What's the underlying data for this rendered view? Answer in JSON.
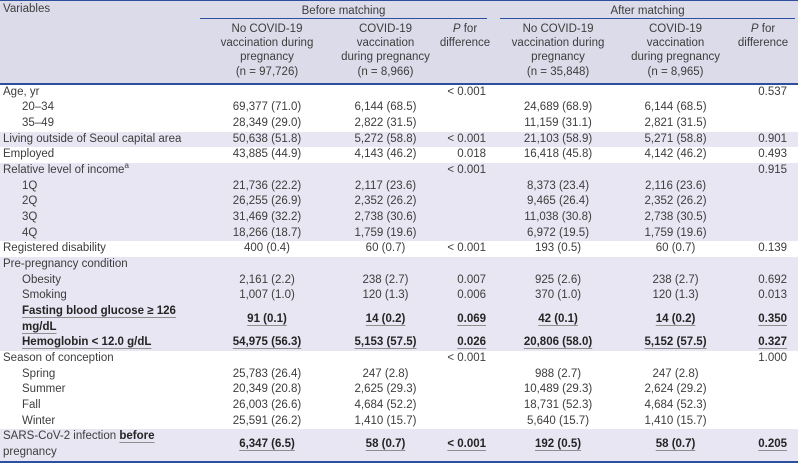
{
  "colors": {
    "accent_line_blue": "#2e4f9e",
    "header_band_bg": "#dcdbea",
    "stripe_row_bg": "#e7e6f2",
    "body_text": "#3d3d3d"
  },
  "header": {
    "variables": "Variables",
    "before_matching": "Before matching",
    "after_matching": "After matching",
    "cols": {
      "no_vacc_before": "No COVID-19\nvaccination during\npregnancy\n(n = 97,726)",
      "vacc_before": "COVID-19 vaccination\nduring pregnancy\n(n = 8,966)",
      "p_before": {
        "italic": "P",
        "rest": " for\ndifference"
      },
      "no_vacc_after": "No COVID-19\nvaccination during\npregnancy\n(n = 35,848)",
      "vacc_after": "COVID-19 vaccination\nduring pregnancy\n(n = 8,965)",
      "p_after": {
        "italic": "P",
        "rest": " for\ndifference"
      }
    }
  },
  "rows": [
    {
      "label": "Age, yr",
      "indent": 0,
      "shade": false,
      "emph": false,
      "cells": [
        "",
        "",
        "< 0.001",
        "",
        "",
        "0.537"
      ]
    },
    {
      "label": "20–34",
      "indent": 1,
      "shade": false,
      "emph": false,
      "cells": [
        "69,377 (71.0)",
        "6,144 (68.5)",
        "",
        "24,689 (68.9)",
        "6,144 (68.5)",
        ""
      ]
    },
    {
      "label": "35–49",
      "indent": 1,
      "shade": false,
      "emph": false,
      "cells": [
        "28,349 (29.0)",
        "2,822 (31.5)",
        "",
        "11,159 (31.1)",
        "2,821 (31.5)",
        ""
      ]
    },
    {
      "label": "Living outside of Seoul capital area",
      "indent": 0,
      "shade": true,
      "emph": false,
      "cells": [
        "50,638 (51.8)",
        "5,272 (58.8)",
        "< 0.001",
        "21,103 (58.9)",
        "5,271 (58.8)",
        "0.901"
      ]
    },
    {
      "label": "Employed",
      "indent": 0,
      "shade": false,
      "emph": false,
      "cells": [
        "43,885 (44.9)",
        "4,143 (46.2)",
        "0.018",
        "16,418 (45.8)",
        "4,142 (46.2)",
        "0.493"
      ]
    },
    {
      "label": "Relative level of income",
      "sup": "a",
      "indent": 0,
      "shade": true,
      "emph": false,
      "cells": [
        "",
        "",
        "< 0.001",
        "",
        "",
        "0.915"
      ]
    },
    {
      "label": "1Q",
      "indent": 1,
      "shade": true,
      "emph": false,
      "cells": [
        "21,736 (22.2)",
        "2,117 (23.6)",
        "",
        "8,373 (23.4)",
        "2,116 (23.6)",
        ""
      ]
    },
    {
      "label": "2Q",
      "indent": 1,
      "shade": true,
      "emph": false,
      "cells": [
        "26,255 (26.9)",
        "2,352 (26.2)",
        "",
        "9,465 (26.4)",
        "2,352 (26.2)",
        ""
      ]
    },
    {
      "label": "3Q",
      "indent": 1,
      "shade": true,
      "emph": false,
      "cells": [
        "31,469 (32.2)",
        "2,738 (30.6)",
        "",
        "11,038 (30.8)",
        "2,738 (30.5)",
        ""
      ]
    },
    {
      "label": "4Q",
      "indent": 1,
      "shade": true,
      "emph": false,
      "cells": [
        "18,266 (18.7)",
        "1,759 (19.6)",
        "",
        "6,972 (19.5)",
        "1,759 (19.6)",
        ""
      ]
    },
    {
      "label": "Registered disability",
      "indent": 0,
      "shade": false,
      "emph": false,
      "cells": [
        "400 (0.4)",
        "60 (0.7)",
        "< 0.001",
        "193 (0.5)",
        "60 (0.7)",
        "0.139"
      ]
    },
    {
      "label": "Pre-pregnancy condition",
      "indent": 0,
      "shade": true,
      "emph": false,
      "cells": [
        "",
        "",
        "",
        "",
        "",
        ""
      ]
    },
    {
      "label": "Obesity",
      "indent": 1,
      "shade": true,
      "emph": false,
      "cells": [
        "2,161 (2.2)",
        "238 (2.7)",
        "0.007",
        "925 (2.6)",
        "238 (2.7)",
        "0.692"
      ]
    },
    {
      "label": "Smoking",
      "indent": 1,
      "shade": true,
      "emph": false,
      "cells": [
        "1,007 (1.0)",
        "120 (1.3)",
        "0.006",
        "370 (1.0)",
        "120 (1.3)",
        "0.013"
      ]
    },
    {
      "label": "Fasting blood glucose ≥ 126 mg/dL",
      "indent": 1,
      "shade": true,
      "emph": true,
      "label_emph_full": true,
      "cells": [
        "91 (0.1)",
        "14 (0.2)",
        "0.069",
        "42 (0.1)",
        "14 (0.2)",
        "0.350"
      ]
    },
    {
      "label": "Hemoglobin < 12.0 g/dL",
      "indent": 1,
      "shade": true,
      "emph": true,
      "label_emph_full": true,
      "cells": [
        "54,975 (56.3)",
        "5,153 (57.5)",
        "0.026",
        "20,806 (58.0)",
        "5,152 (57.5)",
        "0.327"
      ]
    },
    {
      "label": "Season of conception",
      "indent": 0,
      "shade": false,
      "emph": false,
      "cells": [
        "",
        "",
        "< 0.001",
        "",
        "",
        "1.000"
      ]
    },
    {
      "label": "Spring",
      "indent": 1,
      "shade": false,
      "emph": false,
      "cells": [
        "25,783 (26.4)",
        "247 (2.8)",
        "",
        "988 (2.7)",
        "247 (2.8)",
        ""
      ]
    },
    {
      "label": "Summer",
      "indent": 1,
      "shade": false,
      "emph": false,
      "cells": [
        "20,349 (20.8)",
        "2,625 (29.3)",
        "",
        "10,489 (29.3)",
        "2,624 (29.2)",
        ""
      ]
    },
    {
      "label": "Fall",
      "indent": 1,
      "shade": false,
      "emph": false,
      "cells": [
        "26,003 (26.6)",
        "4,684 (52.2)",
        "",
        "18,731 (52.3)",
        "4,684 (52.3)",
        ""
      ]
    },
    {
      "label": "Winter",
      "indent": 1,
      "shade": false,
      "emph": false,
      "cells": [
        "25,591 (26.2)",
        "1,410 (15.7)",
        "",
        "5,640 (15.7)",
        "1,410 (15.7)",
        ""
      ]
    },
    {
      "label_prefix": "SARS-CoV-2 infection ",
      "label_emph": "before",
      "label_suffix": " pregnancy",
      "indent": 0,
      "shade": true,
      "emph": true,
      "cells": [
        "6,347 (6.5)",
        "58 (0.7)",
        "< 0.001",
        "192 (0.5)",
        "58 (0.7)",
        "0.205"
      ]
    }
  ]
}
